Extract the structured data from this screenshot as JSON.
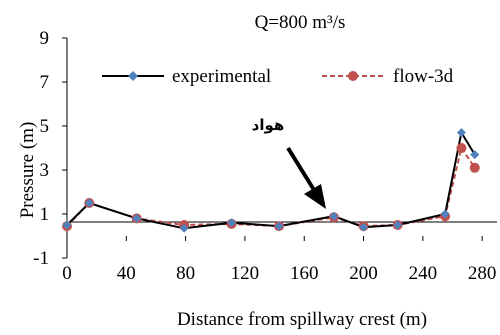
{
  "chart_data": {
    "type": "line",
    "title": "Q=800 m³/s",
    "xlabel": "Distance from spillway crest (m)",
    "ylabel": "Pressure (m)",
    "xlim": [
      0,
      290
    ],
    "ylim": [
      -1,
      9
    ],
    "x_ticks": [
      0,
      40,
      80,
      120,
      160,
      200,
      240,
      280
    ],
    "y_ticks": [
      -1,
      1,
      3,
      5,
      7,
      9
    ],
    "legend_position": "top",
    "annotation": "هواد",
    "series": [
      {
        "name": "experimental",
        "color": "#000000",
        "marker_color": "#4f81bd",
        "marker": "diamond",
        "line_style": "solid",
        "x": [
          0,
          15,
          47,
          79,
          111,
          143,
          180,
          200,
          223,
          255,
          266,
          275
        ],
        "y": [
          0.5,
          1.5,
          0.8,
          0.35,
          0.6,
          0.45,
          0.9,
          0.4,
          0.5,
          1.0,
          4.7,
          3.7
        ]
      },
      {
        "name": "flow-3d",
        "color": "#c0504d",
        "marker_color": "#c0504d",
        "marker": "circle",
        "line_style": "dashed",
        "x": [
          0,
          15,
          47,
          79,
          111,
          143,
          180,
          200,
          223,
          255,
          266,
          275
        ],
        "y": [
          0.45,
          1.5,
          0.8,
          0.5,
          0.55,
          0.45,
          0.85,
          0.45,
          0.5,
          0.9,
          4.0,
          3.1
        ]
      }
    ]
  }
}
